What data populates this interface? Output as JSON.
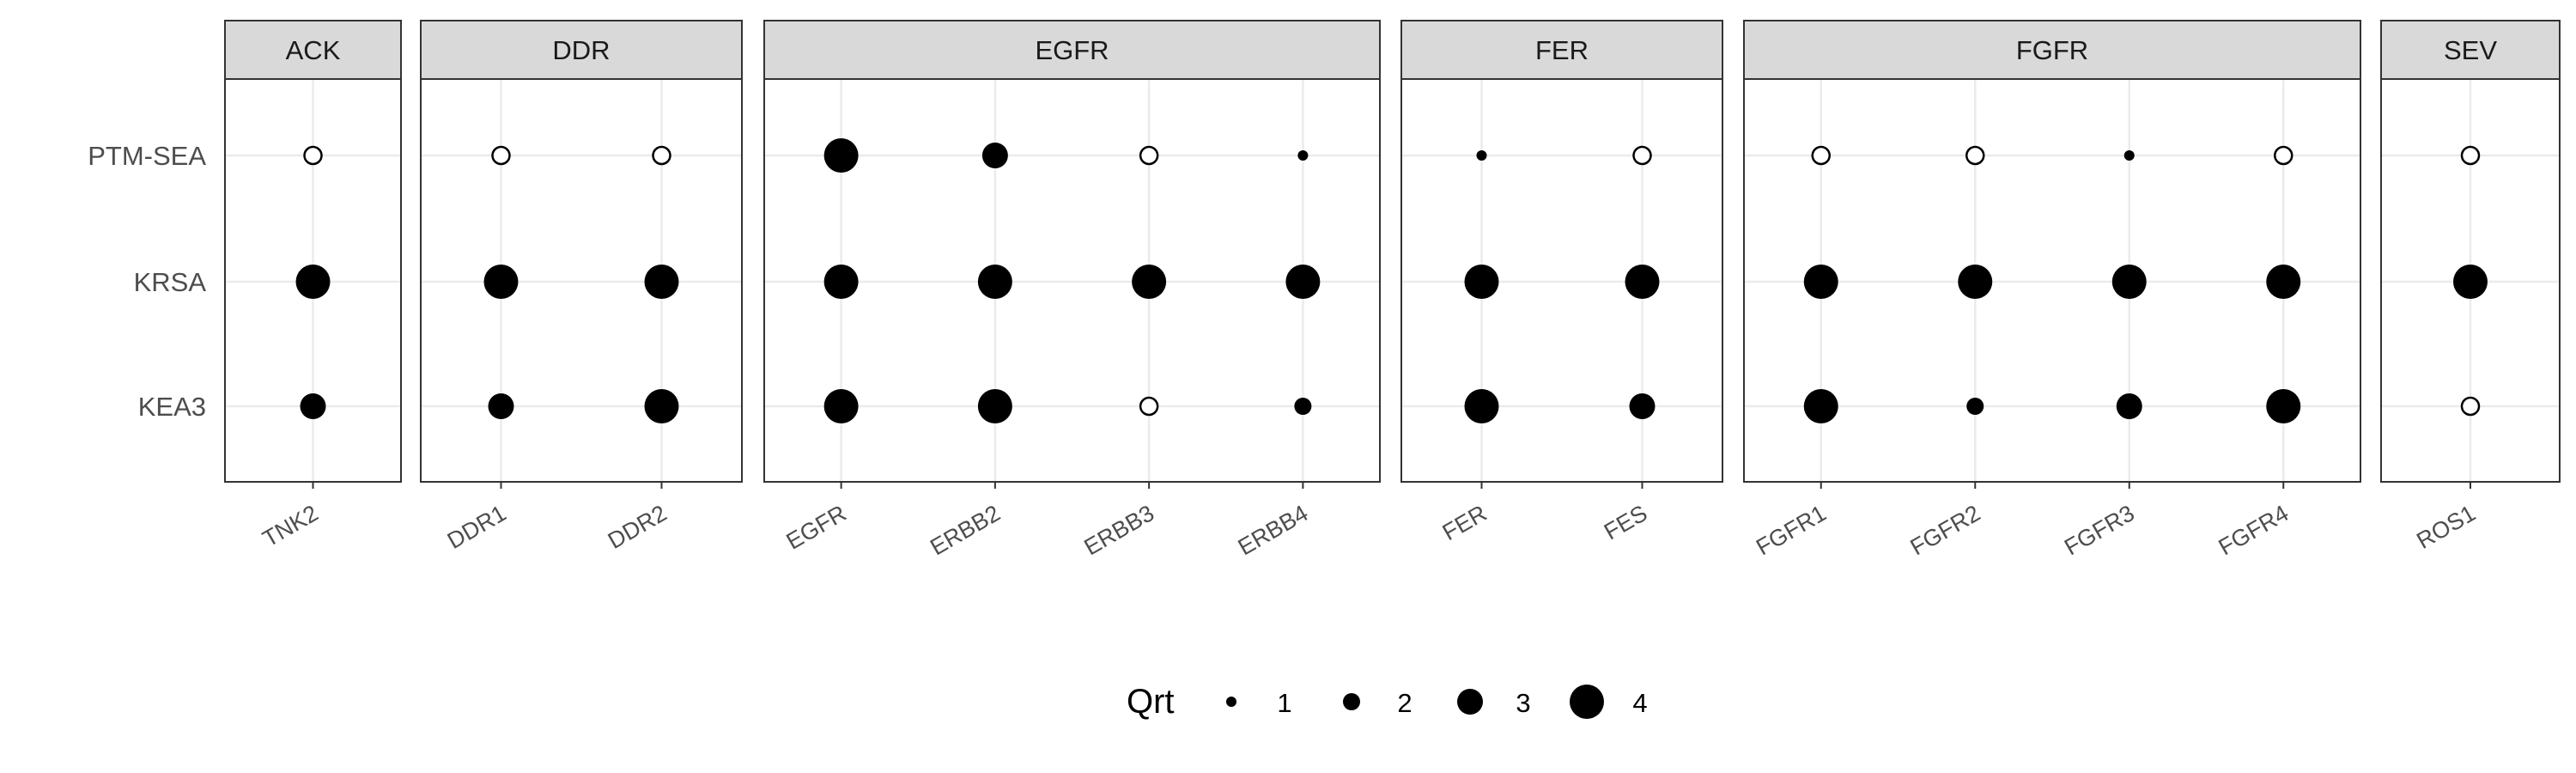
{
  "chart_data": {
    "type": "scatter",
    "subtype": "faceted-dot-plot",
    "title": "",
    "xlabel": "",
    "ylabel": "",
    "y_categories": [
      "PTM-SEA",
      "KRSA",
      "KEA3"
    ],
    "facets": [
      {
        "label": "ACK",
        "kinases": [
          "TNK2"
        ]
      },
      {
        "label": "DDR",
        "kinases": [
          "DDR1",
          "DDR2"
        ]
      },
      {
        "label": "EGFR",
        "kinases": [
          "EGFR",
          "ERBB2",
          "ERBB3",
          "ERBB4"
        ]
      },
      {
        "label": "FER",
        "kinases": [
          "FER",
          "FES"
        ]
      },
      {
        "label": "FGFR",
        "kinases": [
          "FGFR1",
          "FGFR2",
          "FGFR3",
          "FGFR4"
        ]
      },
      {
        "label": "SEV",
        "kinases": [
          "ROS1"
        ]
      }
    ],
    "points": [
      {
        "facet": "ACK",
        "x": "TNK2",
        "y": "PTM-SEA",
        "qrt": null
      },
      {
        "facet": "ACK",
        "x": "TNK2",
        "y": "KRSA",
        "qrt": 4
      },
      {
        "facet": "ACK",
        "x": "TNK2",
        "y": "KEA3",
        "qrt": 3
      },
      {
        "facet": "DDR",
        "x": "DDR1",
        "y": "PTM-SEA",
        "qrt": null
      },
      {
        "facet": "DDR",
        "x": "DDR1",
        "y": "KRSA",
        "qrt": 4
      },
      {
        "facet": "DDR",
        "x": "DDR1",
        "y": "KEA3",
        "qrt": 3
      },
      {
        "facet": "DDR",
        "x": "DDR2",
        "y": "PTM-SEA",
        "qrt": null
      },
      {
        "facet": "DDR",
        "x": "DDR2",
        "y": "KRSA",
        "qrt": 4
      },
      {
        "facet": "DDR",
        "x": "DDR2",
        "y": "KEA3",
        "qrt": 4
      },
      {
        "facet": "EGFR",
        "x": "EGFR",
        "y": "PTM-SEA",
        "qrt": 4
      },
      {
        "facet": "EGFR",
        "x": "EGFR",
        "y": "KRSA",
        "qrt": 4
      },
      {
        "facet": "EGFR",
        "x": "EGFR",
        "y": "KEA3",
        "qrt": 4
      },
      {
        "facet": "EGFR",
        "x": "ERBB2",
        "y": "PTM-SEA",
        "qrt": 3
      },
      {
        "facet": "EGFR",
        "x": "ERBB2",
        "y": "KRSA",
        "qrt": 4
      },
      {
        "facet": "EGFR",
        "x": "ERBB2",
        "y": "KEA3",
        "qrt": 4
      },
      {
        "facet": "EGFR",
        "x": "ERBB3",
        "y": "PTM-SEA",
        "qrt": null
      },
      {
        "facet": "EGFR",
        "x": "ERBB3",
        "y": "KRSA",
        "qrt": 4
      },
      {
        "facet": "EGFR",
        "x": "ERBB3",
        "y": "KEA3",
        "qrt": null
      },
      {
        "facet": "EGFR",
        "x": "ERBB4",
        "y": "PTM-SEA",
        "qrt": 1
      },
      {
        "facet": "EGFR",
        "x": "ERBB4",
        "y": "KRSA",
        "qrt": 4
      },
      {
        "facet": "EGFR",
        "x": "ERBB4",
        "y": "KEA3",
        "qrt": 2
      },
      {
        "facet": "FER",
        "x": "FER",
        "y": "PTM-SEA",
        "qrt": 1
      },
      {
        "facet": "FER",
        "x": "FER",
        "y": "KRSA",
        "qrt": 4
      },
      {
        "facet": "FER",
        "x": "FER",
        "y": "KEA3",
        "qrt": 4
      },
      {
        "facet": "FER",
        "x": "FES",
        "y": "PTM-SEA",
        "qrt": null
      },
      {
        "facet": "FER",
        "x": "FES",
        "y": "KRSA",
        "qrt": 4
      },
      {
        "facet": "FER",
        "x": "FES",
        "y": "KEA3",
        "qrt": 3
      },
      {
        "facet": "FGFR",
        "x": "FGFR1",
        "y": "PTM-SEA",
        "qrt": null
      },
      {
        "facet": "FGFR",
        "x": "FGFR1",
        "y": "KRSA",
        "qrt": 4
      },
      {
        "facet": "FGFR",
        "x": "FGFR1",
        "y": "KEA3",
        "qrt": 4
      },
      {
        "facet": "FGFR",
        "x": "FGFR2",
        "y": "PTM-SEA",
        "qrt": null
      },
      {
        "facet": "FGFR",
        "x": "FGFR2",
        "y": "KRSA",
        "qrt": 4
      },
      {
        "facet": "FGFR",
        "x": "FGFR2",
        "y": "KEA3",
        "qrt": 2
      },
      {
        "facet": "FGFR",
        "x": "FGFR3",
        "y": "PTM-SEA",
        "qrt": 1
      },
      {
        "facet": "FGFR",
        "x": "FGFR3",
        "y": "KRSA",
        "qrt": 4
      },
      {
        "facet": "FGFR",
        "x": "FGFR3",
        "y": "KEA3",
        "qrt": 3
      },
      {
        "facet": "FGFR",
        "x": "FGFR4",
        "y": "PTM-SEA",
        "qrt": null
      },
      {
        "facet": "FGFR",
        "x": "FGFR4",
        "y": "KRSA",
        "qrt": 4
      },
      {
        "facet": "FGFR",
        "x": "FGFR4",
        "y": "KEA3",
        "qrt": 4
      },
      {
        "facet": "SEV",
        "x": "ROS1",
        "y": "PTM-SEA",
        "qrt": null
      },
      {
        "facet": "SEV",
        "x": "ROS1",
        "y": "KRSA",
        "qrt": 4
      },
      {
        "facet": "SEV",
        "x": "ROS1",
        "y": "KEA3",
        "qrt": null
      }
    ],
    "legend": {
      "title": "Qrt",
      "position": "bottom",
      "entries": [
        {
          "label": "1",
          "qrt": 1
        },
        {
          "label": "2",
          "qrt": 2
        },
        {
          "label": "3",
          "qrt": 3
        },
        {
          "label": "4",
          "qrt": 4
        }
      ]
    },
    "grid": true,
    "colors": {
      "point": "#000000",
      "missing_point_fill": "#ffffff",
      "strip_fill": "#d9d9d9",
      "panel_border": "#333333",
      "grid": "#ebebeb",
      "axis_text": "#4d4d4d",
      "strip_text": "#1a1a1a"
    }
  }
}
